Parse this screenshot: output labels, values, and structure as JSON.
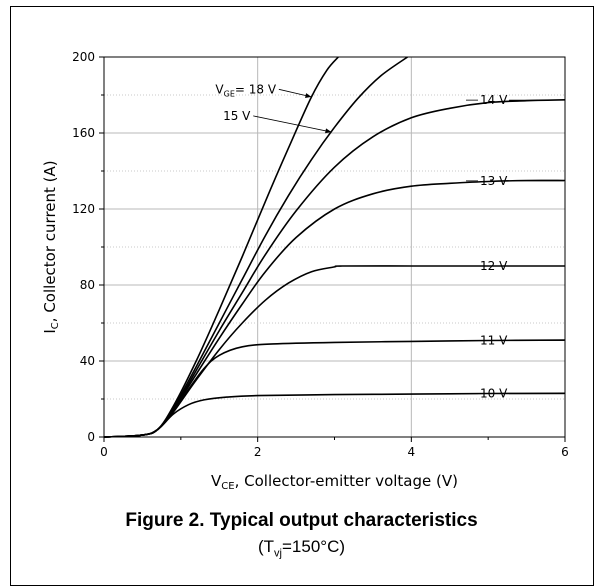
{
  "chart_data": {
    "type": "line",
    "title": "Figure 2. Typical output characteristics",
    "subtitle": {
      "prefix": "(T",
      "sub": "vj",
      "suffix": "=150°C)"
    },
    "xlabel": {
      "main": "V",
      "sub": "CE",
      "rest": ", Collector-emitter voltage (V)"
    },
    "ylabel": {
      "main": "I",
      "sub": "C",
      "rest": ", Collector current (A)"
    },
    "xlim": [
      0,
      6
    ],
    "ylim": [
      0,
      200
    ],
    "xticks": [
      0,
      2,
      4,
      6
    ],
    "yticks": [
      0,
      40,
      80,
      120,
      160,
      200
    ],
    "grid": true,
    "series": [
      {
        "name": "10 V",
        "x": [
          0,
          0.5,
          0.7,
          0.9,
          1.1,
          1.3,
          1.6,
          2.0,
          3.0,
          4.0,
          5.0,
          6.0
        ],
        "y": [
          0,
          1,
          4,
          12,
          17,
          19.5,
          21,
          21.8,
          22.3,
          22.6,
          22.9,
          23
        ]
      },
      {
        "name": "11 V",
        "x": [
          0,
          0.5,
          0.7,
          0.9,
          1.1,
          1.3,
          1.5,
          1.8,
          2.2,
          3.0,
          4.0,
          5.0,
          6.0
        ],
        "y": [
          0,
          1,
          4,
          13,
          25,
          36,
          43,
          47.5,
          49,
          49.8,
          50.3,
          50.8,
          51
        ]
      },
      {
        "name": "12 V",
        "x": [
          0,
          0.5,
          0.7,
          0.9,
          1.2,
          1.5,
          1.8,
          2.1,
          2.4,
          2.7,
          3.0,
          3.1,
          4.0,
          5.0,
          6.0
        ],
        "y": [
          0,
          1,
          4,
          13,
          30,
          46,
          60,
          72,
          81,
          87,
          89.5,
          90,
          90,
          90,
          90
        ]
      },
      {
        "name": "13 V",
        "x": [
          0,
          0.5,
          0.7,
          0.9,
          1.2,
          1.5,
          1.8,
          2.1,
          2.5,
          3.0,
          3.5,
          4.0,
          4.5,
          5.0,
          5.5,
          6.0
        ],
        "y": [
          0,
          1,
          4,
          14,
          33,
          52,
          70,
          87,
          105,
          120,
          128,
          132,
          133.5,
          134.5,
          135,
          135
        ]
      },
      {
        "name": "14 V",
        "x": [
          0,
          0.5,
          0.7,
          0.9,
          1.2,
          1.5,
          1.8,
          2.1,
          2.5,
          3.0,
          3.5,
          4.0,
          4.5,
          5.0,
          5.5,
          6.0
        ],
        "y": [
          0,
          1,
          4,
          14,
          35,
          56,
          76,
          96,
          119,
          142,
          158,
          168,
          173,
          176,
          177,
          177.5
        ]
      },
      {
        "name": "15 V",
        "x": [
          0,
          0.5,
          0.7,
          0.9,
          1.2,
          1.5,
          1.8,
          2.1,
          2.4,
          2.7,
          3.0,
          3.3,
          3.6,
          3.95
        ],
        "y": [
          0,
          1,
          4,
          15,
          37,
          60,
          83,
          106,
          127,
          146,
          163,
          178,
          190,
          200
        ]
      },
      {
        "name": "V_GE= 18 V",
        "x": [
          0,
          0.5,
          0.7,
          0.9,
          1.2,
          1.5,
          1.8,
          2.1,
          2.4,
          2.7,
          2.9,
          3.05
        ],
        "y": [
          0,
          1,
          4,
          16,
          40,
          67,
          95,
          124,
          152,
          179,
          193,
          200
        ]
      }
    ],
    "labels": [
      {
        "text": "10 V",
        "x": 5.05,
        "y": 22.8
      },
      {
        "text": "11 V",
        "x": 5.05,
        "y": 50.8
      },
      {
        "text": "12 V",
        "x": 5.05,
        "y": 90
      },
      {
        "text": "13 V",
        "x": 5.05,
        "y": 134.8
      },
      {
        "text": "14 V",
        "x": 5.05,
        "y": 177.3
      },
      {
        "text": "15 V",
        "x": 1.55,
        "y": 169,
        "arrow_to": [
          2.96,
          160.5
        ]
      },
      {
        "main": "V",
        "sub": "GE",
        "after": "= 18 V",
        "x": 1.45,
        "y": 183,
        "arrow_to": [
          2.7,
          179
        ]
      }
    ]
  }
}
